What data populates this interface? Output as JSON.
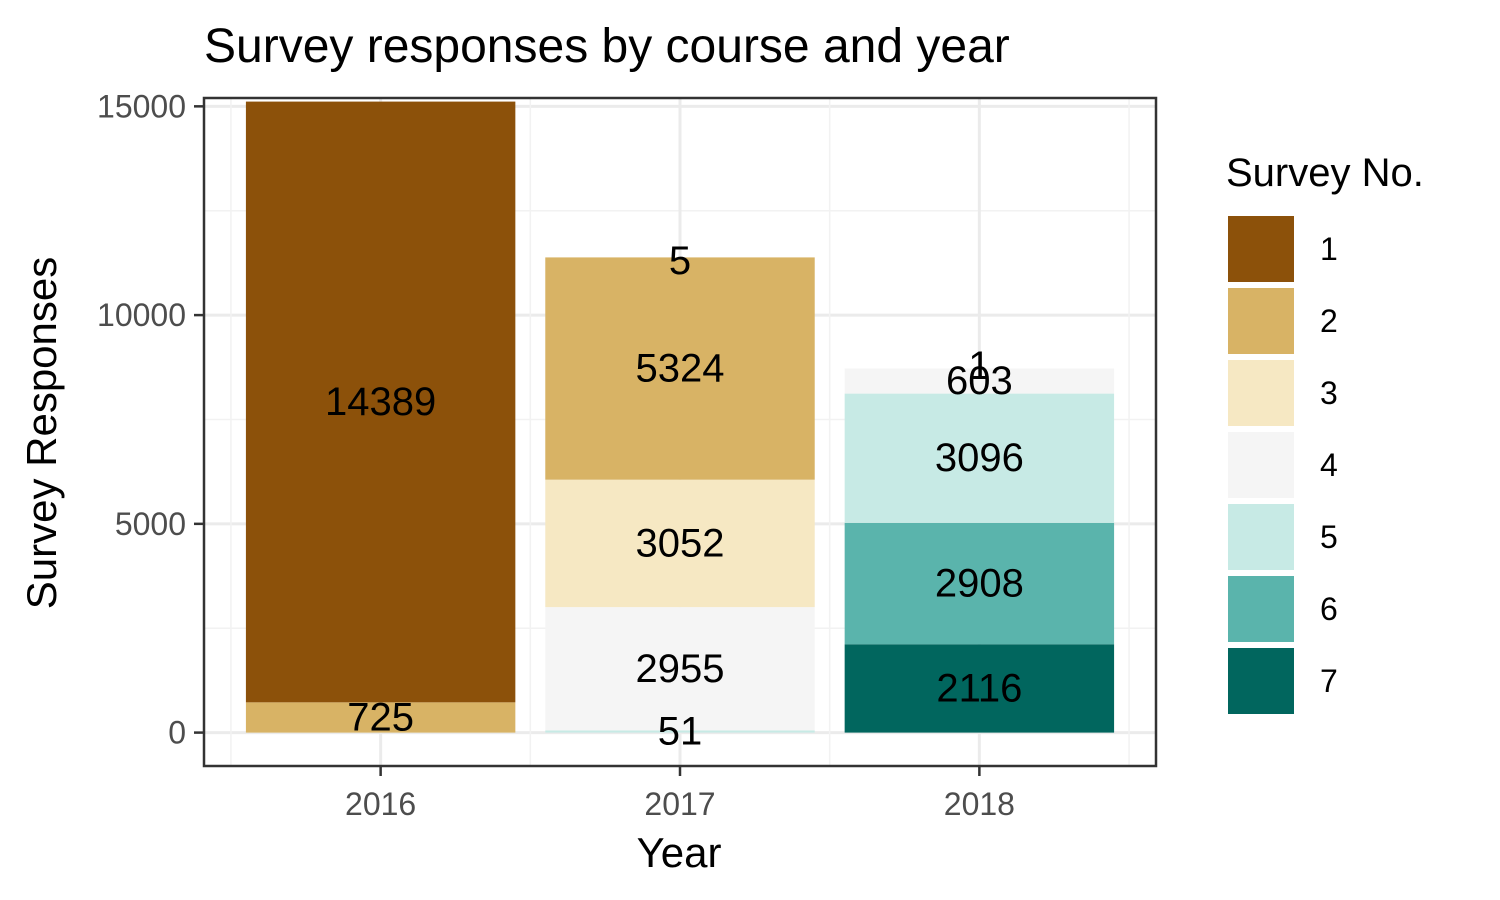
{
  "chart_data": {
    "type": "bar",
    "stacked": true,
    "title": "Survey responses by course and year",
    "xlabel": "Year",
    "ylabel": "Survey Responses",
    "categories": [
      "2016",
      "2017",
      "2018"
    ],
    "ylim": [
      -800,
      15200
    ],
    "yticks": [
      0,
      5000,
      10000,
      15000
    ],
    "grid": true,
    "legend": {
      "title": "Survey No.",
      "position": "right"
    },
    "series": [
      {
        "name": "1",
        "color": "#8c510a",
        "values": [
          14389,
          0,
          0
        ]
      },
      {
        "name": "2",
        "color": "#d8b365",
        "values": [
          725,
          5324,
          0
        ]
      },
      {
        "name": "3",
        "color": "#f6e8c3",
        "values": [
          0,
          3052,
          0
        ]
      },
      {
        "name": "4",
        "color": "#f5f5f5",
        "values": [
          0,
          2955,
          603
        ]
      },
      {
        "name": "5",
        "color": "#c7eae5",
        "values": [
          0,
          51,
          3096
        ]
      },
      {
        "name": "6",
        "color": "#5ab4ac",
        "values": [
          0,
          0,
          2908
        ]
      },
      {
        "name": "7",
        "color": "#01665e",
        "values": [
          0,
          0,
          2116
        ]
      }
    ],
    "extra_labels": [
      {
        "category": "2017",
        "value": 5,
        "at": 11300
      },
      {
        "category": "2018",
        "value": 1,
        "at": 8780
      }
    ],
    "stack_bottom_order": [
      "7",
      "6",
      "5",
      "4",
      "3",
      "2",
      "1"
    ]
  }
}
